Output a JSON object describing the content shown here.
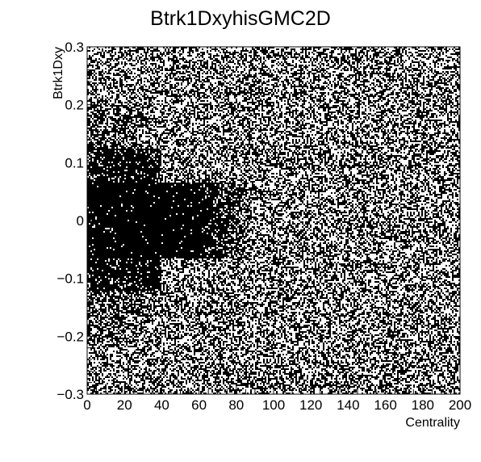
{
  "chart_data": {
    "type": "heatmap",
    "title": "Btrk1DxyhisGMC2D",
    "xlabel": "Centrality",
    "ylabel": "Btrk1Dxy",
    "xlim": [
      0,
      200
    ],
    "ylim": [
      -0.3,
      0.3
    ],
    "x_ticks": [
      0,
      20,
      40,
      60,
      80,
      100,
      120,
      140,
      160,
      180,
      200
    ],
    "x_tick_labels": [
      "0",
      "20",
      "40",
      "60",
      "80",
      "100",
      "120",
      "140",
      "160",
      "180",
      "200"
    ],
    "y_ticks": [
      -0.3,
      -0.2,
      -0.1,
      0,
      0.1,
      0.2,
      0.3
    ],
    "y_tick_labels": [
      "−0.3",
      "−0.2",
      "−0.1",
      "0",
      "0.1",
      "0.2",
      "0.3"
    ],
    "grid": false,
    "legend": "none",
    "draw_option": "scatter (dense points)",
    "colors": {
      "points": "#000000",
      "background": "#ffffff",
      "frame": "#000000"
    },
    "density_regions": [
      {
        "x": [
          0,
          60
        ],
        "y": [
          -0.06,
          0.06
        ],
        "density": "near-solid"
      },
      {
        "x": [
          0,
          40
        ],
        "y": [
          -0.12,
          0.12
        ],
        "density": "very high"
      },
      {
        "x": [
          40,
          90
        ],
        "y": [
          -0.06,
          0.06
        ],
        "density": "high, fading with centrality"
      },
      {
        "x": [
          0,
          200
        ],
        "y": [
          -0.3,
          0.3
        ],
        "density": "roughly uniform ~50%"
      }
    ]
  }
}
